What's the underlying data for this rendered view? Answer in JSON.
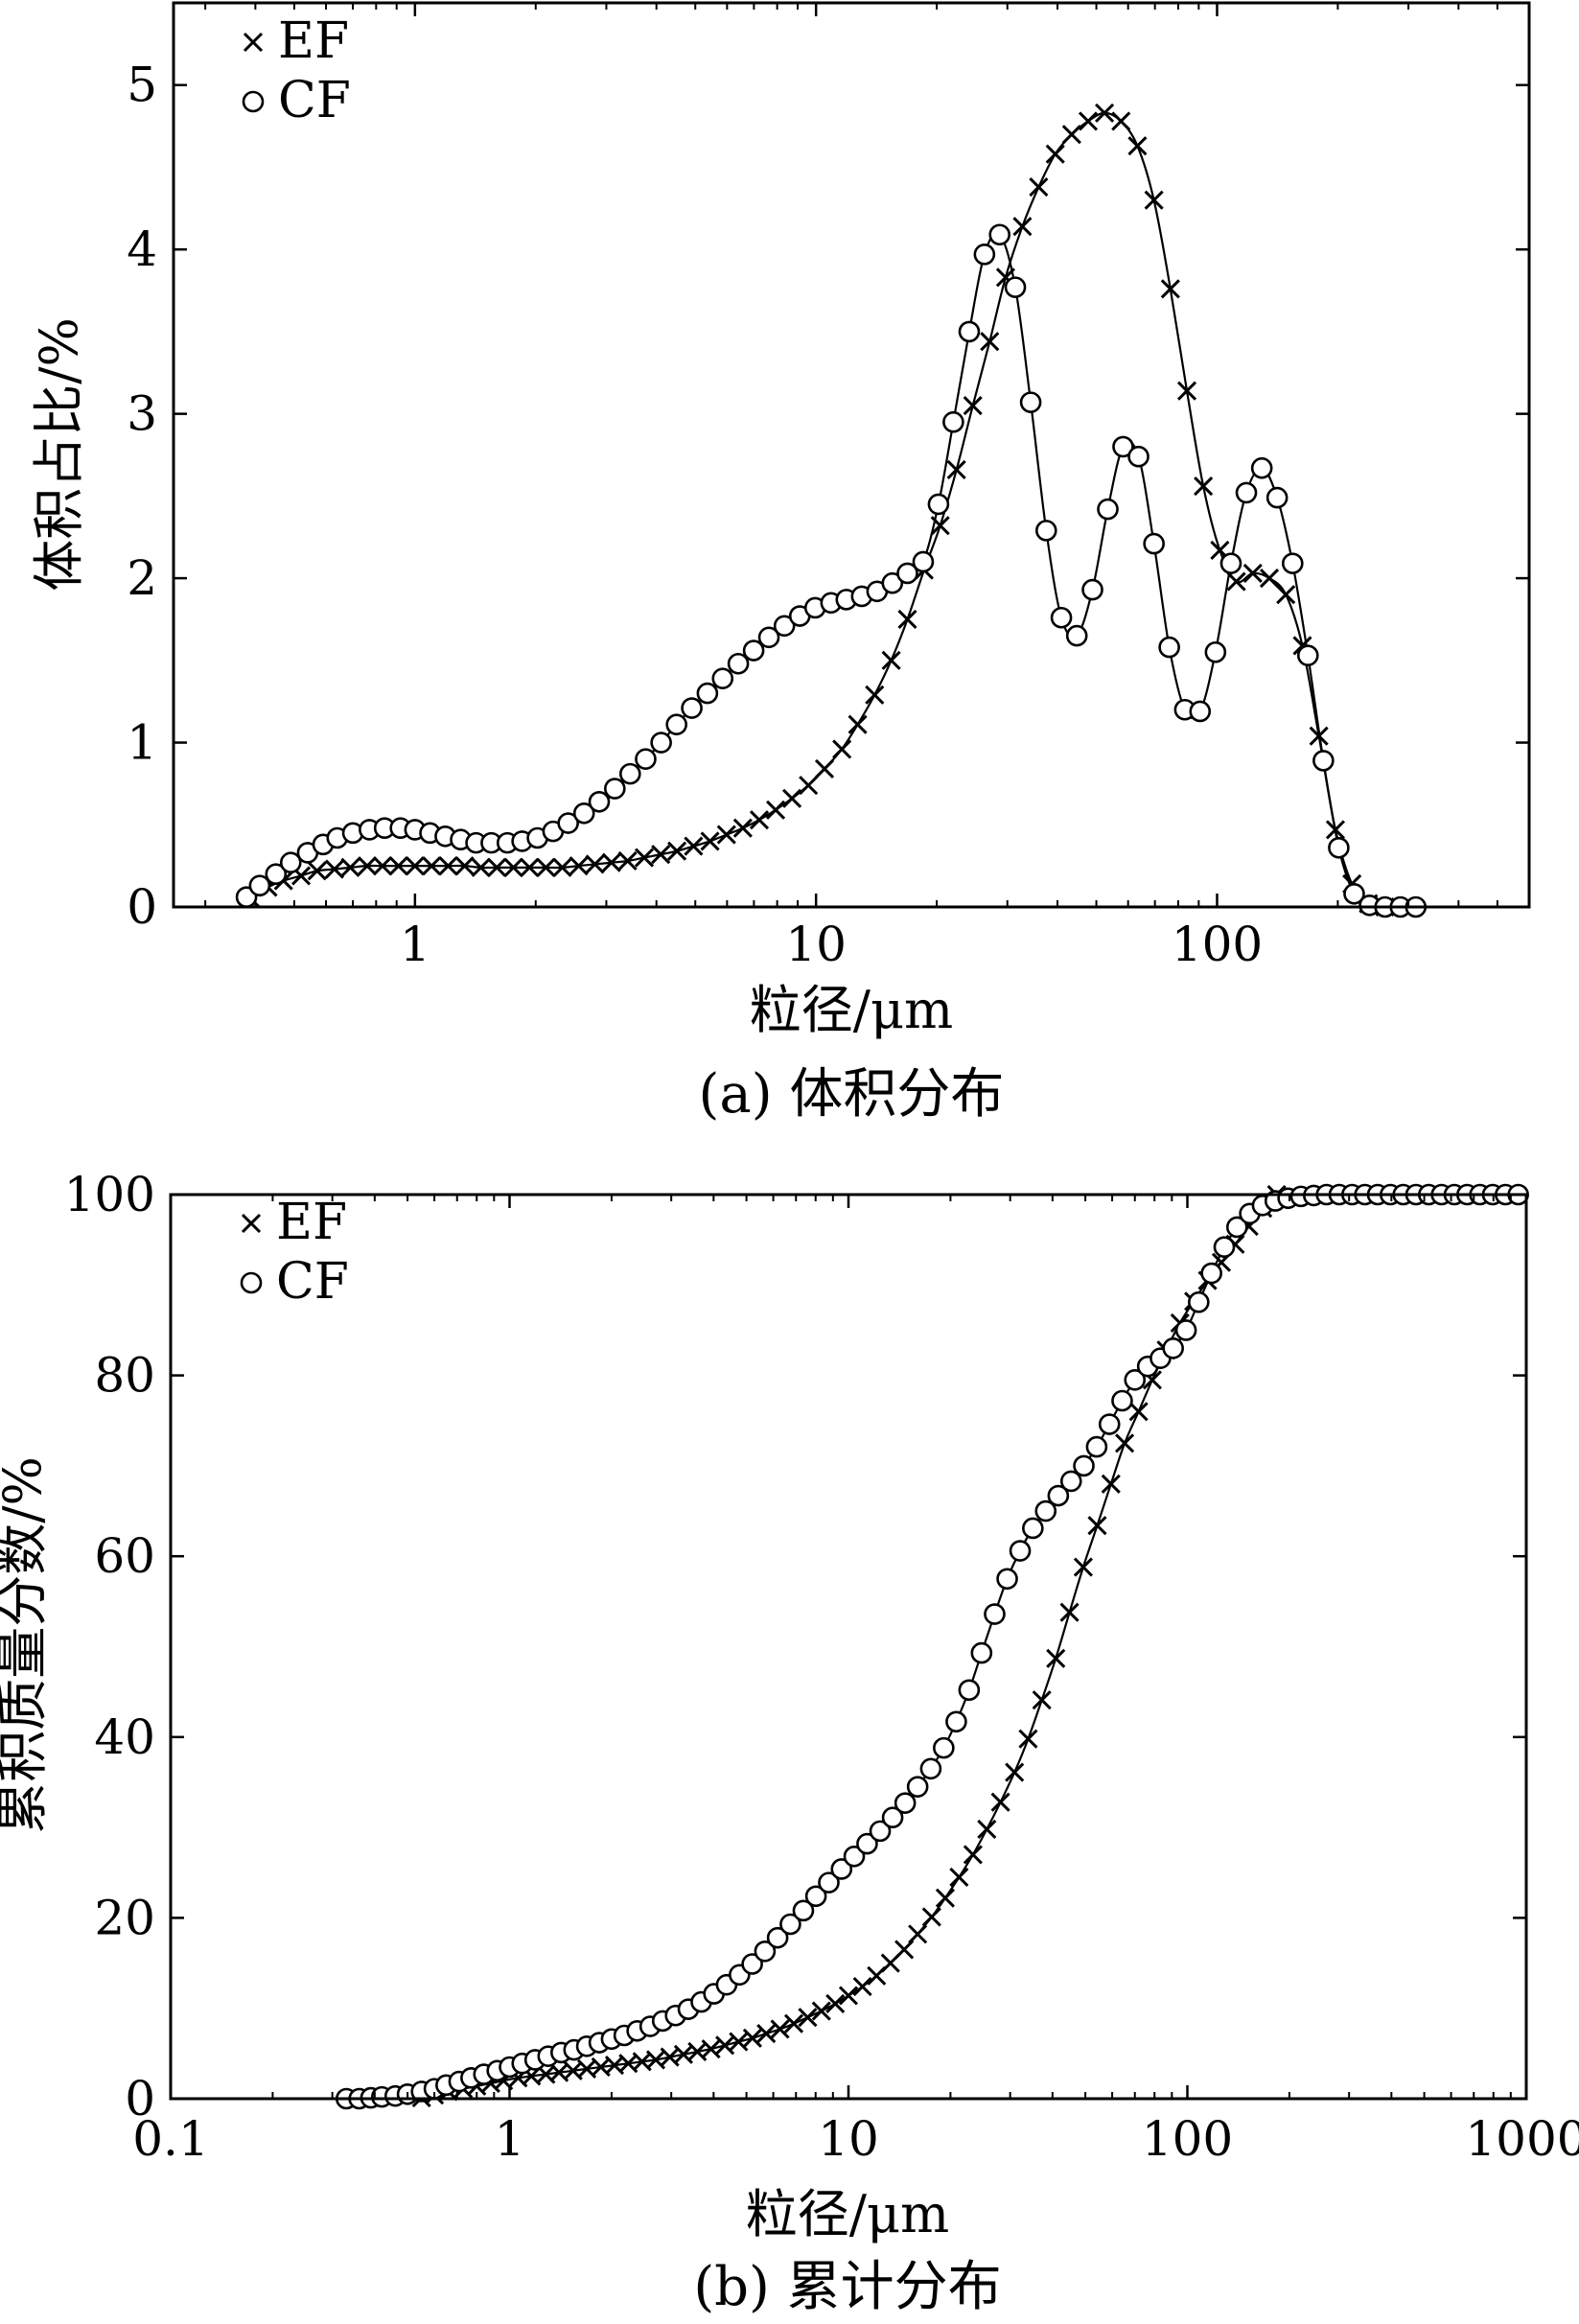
{
  "colors": {
    "ink": "#000000",
    "background": "#ffffff"
  },
  "chart_data": [
    {
      "id": "a",
      "type": "line",
      "caption": "(a) 体积分布",
      "title": "",
      "xlabel": "粒径/μm",
      "ylabel": "体积占比/%",
      "xscale": "log",
      "xlim": [
        0.25,
        600
      ],
      "ylim": [
        0,
        5.5
      ],
      "xticks": [
        1,
        10,
        100
      ],
      "xtick_labels": [
        "1",
        "10",
        "100"
      ],
      "yticks": [
        0,
        1,
        2,
        3,
        4,
        5
      ],
      "ytick_labels": [
        "0",
        "1",
        "2",
        "3",
        "4",
        "5"
      ],
      "grid": false,
      "legend_position": "top-left",
      "series": [
        {
          "name": "EF",
          "marker": "x",
          "x": [
            0.39,
            0.43,
            0.47,
            0.52,
            0.57,
            0.63,
            0.69,
            0.76,
            0.83,
            0.91,
            1.0,
            1.1,
            1.21,
            1.33,
            1.46,
            1.6,
            1.76,
            1.93,
            2.12,
            2.33,
            2.56,
            2.81,
            3.09,
            3.39,
            3.73,
            4.1,
            4.5,
            4.95,
            5.44,
            5.98,
            6.57,
            7.22,
            7.93,
            8.71,
            9.57,
            10.5,
            11.6,
            12.7,
            14.0,
            15.4,
            16.9,
            18.6,
            20.4,
            22.4,
            24.6,
            27.1,
            29.7,
            32.7,
            35.9,
            39.5,
            43.4,
            47.7,
            52.4,
            57.6,
            63.3,
            69.6,
            76.5,
            84.1,
            92.4,
            101.6,
            111.7,
            122.8,
            135.0,
            148.4,
            163.2,
            179.4,
            197.3,
            216.9,
            238.5,
            262.2
          ],
          "y": [
            0.05,
            0.12,
            0.16,
            0.19,
            0.22,
            0.23,
            0.24,
            0.25,
            0.25,
            0.25,
            0.25,
            0.25,
            0.25,
            0.25,
            0.24,
            0.24,
            0.24,
            0.24,
            0.24,
            0.24,
            0.25,
            0.26,
            0.27,
            0.28,
            0.3,
            0.32,
            0.34,
            0.37,
            0.4,
            0.44,
            0.48,
            0.53,
            0.59,
            0.66,
            0.74,
            0.84,
            0.96,
            1.11,
            1.29,
            1.5,
            1.75,
            2.05,
            2.32,
            2.66,
            3.05,
            3.44,
            3.83,
            4.14,
            4.38,
            4.58,
            4.7,
            4.78,
            4.83,
            4.78,
            4.63,
            4.3,
            3.76,
            3.14,
            2.56,
            2.17,
            1.98,
            2.03,
            2.0,
            1.9,
            1.59,
            1.04,
            0.47,
            0.14,
            0.02,
            0.0
          ]
        },
        {
          "name": "CF",
          "marker": "o",
          "x": [
            0.38,
            0.41,
            0.45,
            0.49,
            0.54,
            0.59,
            0.64,
            0.7,
            0.77,
            0.84,
            0.92,
            1.0,
            1.09,
            1.19,
            1.3,
            1.42,
            1.55,
            1.7,
            1.85,
            2.02,
            2.21,
            2.41,
            2.64,
            2.88,
            3.15,
            3.44,
            3.76,
            4.11,
            4.49,
            4.9,
            5.36,
            5.85,
            6.4,
            6.99,
            7.63,
            8.34,
            9.11,
            9.95,
            10.9,
            11.9,
            13.0,
            14.2,
            15.5,
            16.9,
            18.5,
            20.2,
            22.0,
            24.1,
            26.3,
            28.7,
            31.4,
            34.3,
            37.5,
            40.9,
            44.7,
            48.9,
            53.4,
            58.3,
            63.7,
            69.6,
            76.0,
            83.1,
            90.7,
            99.1,
            108.3,
            118.3,
            129.3,
            141.2,
            154.3,
            168.5,
            184.1,
            201.1,
            219.7,
            240.0,
            262.3,
            286.5,
            313.0
          ],
          "y": [
            0.06,
            0.13,
            0.2,
            0.27,
            0.33,
            0.38,
            0.42,
            0.45,
            0.47,
            0.48,
            0.48,
            0.47,
            0.45,
            0.43,
            0.41,
            0.39,
            0.39,
            0.39,
            0.4,
            0.42,
            0.46,
            0.51,
            0.57,
            0.64,
            0.72,
            0.81,
            0.9,
            1.0,
            1.11,
            1.21,
            1.3,
            1.39,
            1.48,
            1.56,
            1.64,
            1.71,
            1.77,
            1.82,
            1.85,
            1.87,
            1.89,
            1.92,
            1.97,
            2.03,
            2.1,
            2.45,
            2.95,
            3.5,
            3.97,
            4.09,
            3.77,
            3.07,
            2.29,
            1.76,
            1.65,
            1.93,
            2.42,
            2.8,
            2.74,
            2.21,
            1.58,
            1.2,
            1.19,
            1.55,
            2.09,
            2.52,
            2.67,
            2.49,
            2.09,
            1.53,
            0.89,
            0.36,
            0.08,
            0.01,
            0.0,
            0.0,
            0.0
          ]
        }
      ]
    },
    {
      "id": "b",
      "type": "line",
      "caption": "(b) 累计分布",
      "title": "",
      "xlabel": "粒径/μm",
      "ylabel": "累积质量分数/%",
      "xscale": "log",
      "xlim": [
        0.1,
        1000
      ],
      "ylim": [
        0,
        100
      ],
      "xticks": [
        0.1,
        1,
        10,
        100,
        1000
      ],
      "xtick_labels": [
        "0.1",
        "1",
        "10",
        "100",
        "1000"
      ],
      "yticks": [
        0,
        20,
        40,
        60,
        80,
        100
      ],
      "ytick_labels": [
        "0",
        "20",
        "40",
        "60",
        "80",
        "100"
      ],
      "grid": false,
      "legend_position": "top-left",
      "series": [
        {
          "name": "EF",
          "marker": "x",
          "x": [
            0.55,
            0.6,
            0.66,
            0.73,
            0.8,
            0.88,
            0.96,
            1.06,
            1.16,
            1.28,
            1.4,
            1.54,
            1.69,
            1.86,
            2.04,
            2.24,
            2.46,
            2.7,
            2.97,
            3.26,
            3.58,
            3.93,
            4.32,
            4.74,
            5.21,
            5.72,
            6.28,
            6.9,
            7.58,
            8.32,
            9.14,
            10.0,
            11.0,
            12.1,
            13.3,
            14.6,
            16.0,
            17.6,
            19.3,
            21.2,
            23.3,
            25.6,
            28.1,
            30.9,
            33.9,
            37.2,
            40.9,
            44.9,
            49.3,
            54.2,
            59.5,
            65.3,
            71.8,
            78.8,
            86.6,
            95.1,
            104.4,
            114.7,
            126.0,
            138.4,
            152.0,
            166.9,
            183.4
          ],
          "y": [
            0.1,
            0.4,
            0.8,
            1.1,
            1.4,
            1.7,
            2.0,
            2.3,
            2.5,
            2.7,
            2.9,
            3.1,
            3.3,
            3.5,
            3.7,
            3.9,
            4.1,
            4.3,
            4.6,
            4.9,
            5.2,
            5.5,
            5.9,
            6.3,
            6.7,
            7.2,
            7.7,
            8.3,
            9.0,
            9.7,
            10.5,
            11.4,
            12.4,
            13.6,
            15.0,
            16.5,
            18.2,
            20.1,
            22.2,
            24.5,
            27.0,
            29.8,
            32.8,
            36.1,
            39.8,
            44.1,
            48.7,
            53.8,
            58.8,
            63.4,
            68.0,
            72.5,
            76.0,
            79.5,
            82.8,
            85.8,
            88.2,
            90.5,
            92.5,
            94.5,
            96.5,
            98.5,
            100.0
          ]
        },
        {
          "name": "CF",
          "marker": "o",
          "x": [
            0.33,
            0.36,
            0.39,
            0.42,
            0.46,
            0.5,
            0.55,
            0.6,
            0.65,
            0.71,
            0.77,
            0.84,
            0.92,
            1.0,
            1.09,
            1.19,
            1.3,
            1.42,
            1.55,
            1.69,
            1.84,
            2.0,
            2.18,
            2.38,
            2.6,
            2.83,
            3.09,
            3.37,
            3.68,
            4.01,
            4.37,
            4.77,
            5.2,
            5.67,
            6.18,
            6.74,
            7.36,
            8.02,
            8.75,
            9.54,
            10.4,
            11.35,
            12.4,
            13.5,
            14.7,
            16.0,
            17.5,
            19.1,
            20.8,
            22.7,
            24.7,
            27.0,
            29.4,
            32.1,
            35.0,
            38.2,
            41.6,
            45.4,
            49.5,
            54.0,
            58.9,
            64.2,
            70.0,
            76.4,
            83.3,
            90.8,
            99.1,
            108.0,
            117.8,
            128.5,
            140.1,
            152.8,
            166.7,
            181.8,
            198.3,
            216.3,
            236.0,
            257.4,
            280.7,
            306.2,
            334.0,
            364.3,
            397.4,
            433.4,
            472.7,
            515.6,
            562.4,
            613.4,
            669.1,
            729.8,
            796.0,
            868.2,
            946.9
          ],
          "y": [
            0.0,
            0.0,
            0.1,
            0.2,
            0.3,
            0.5,
            0.8,
            1.1,
            1.5,
            1.9,
            2.3,
            2.7,
            3.1,
            3.5,
            3.9,
            4.3,
            4.7,
            5.1,
            5.4,
            5.8,
            6.2,
            6.6,
            7.0,
            7.5,
            8.0,
            8.6,
            9.2,
            9.9,
            10.7,
            11.6,
            12.6,
            13.7,
            14.9,
            16.3,
            17.8,
            19.3,
            20.8,
            22.4,
            23.9,
            25.4,
            26.8,
            28.2,
            29.6,
            31.1,
            32.7,
            34.5,
            36.5,
            38.8,
            41.7,
            45.2,
            49.3,
            53.6,
            57.5,
            60.6,
            63.1,
            65.0,
            66.7,
            68.3,
            70.0,
            72.1,
            74.6,
            77.2,
            79.5,
            81.0,
            81.9,
            83.0,
            85.0,
            88.1,
            91.3,
            94.2,
            96.4,
            97.9,
            98.8,
            99.3,
            99.6,
            99.8,
            99.9,
            100.0,
            100.0,
            100.0,
            100.0,
            100.0,
            100.0,
            100.0,
            100.0,
            100.0,
            100.0,
            100.0,
            100.0,
            100.0,
            100.0,
            100.0,
            100.0
          ]
        }
      ]
    }
  ]
}
